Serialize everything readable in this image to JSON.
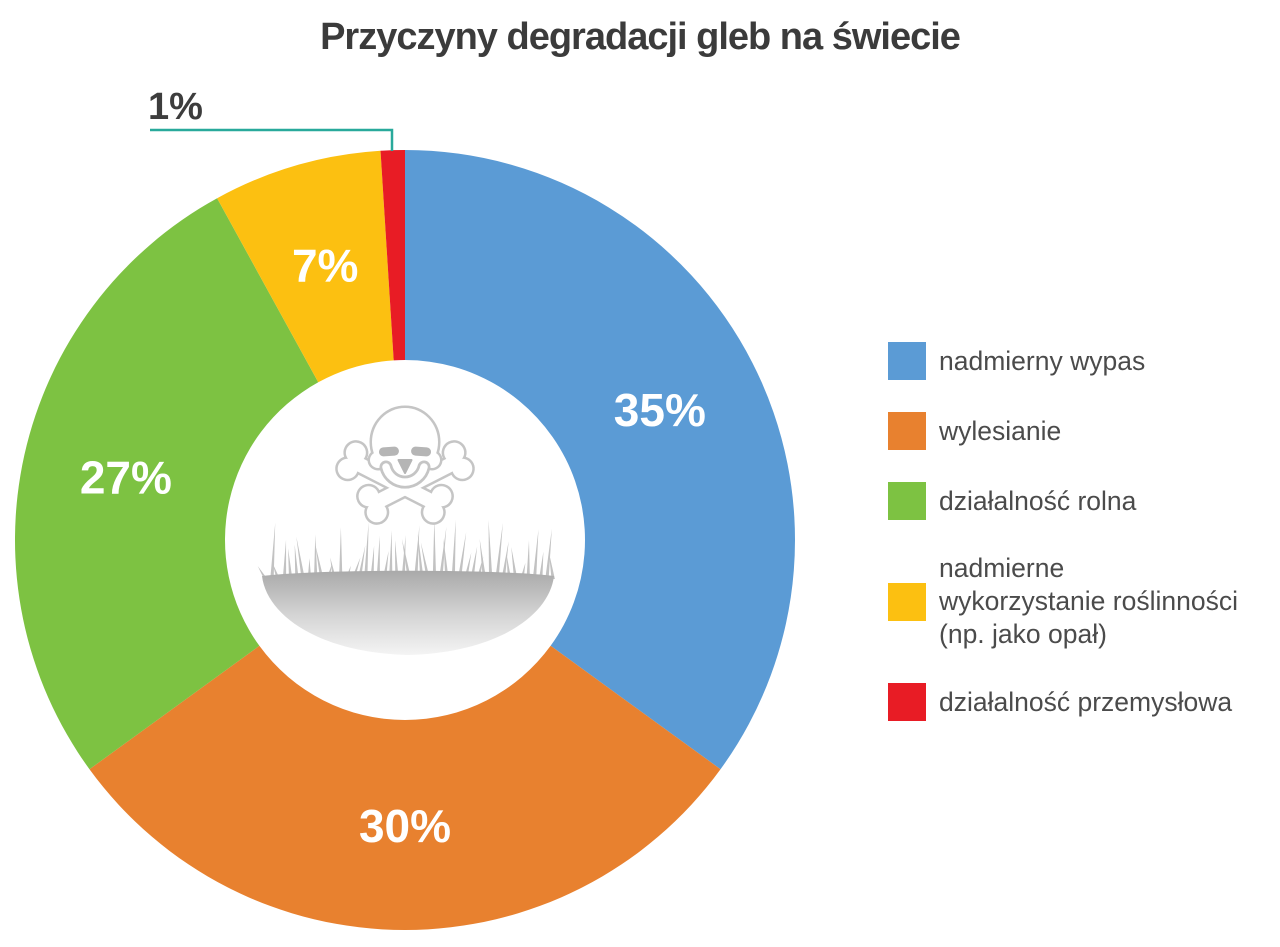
{
  "title": "Przyczyny degradacji gleb na świecie",
  "chart_data": {
    "type": "pie",
    "subtype": "donut",
    "title": "Przyczyny degradacji gleb na świecie",
    "start_angle_deg": 0,
    "direction": "clockwise",
    "donut_hole_ratio": 0.46,
    "legend_position": "right",
    "center_icon": "skull-crossbones-over-grass-soil",
    "callout_color": "#29a99b",
    "series": [
      {
        "label": "nadmierny wypas",
        "value": 35,
        "pct_label": "35%",
        "color": "#5b9bd5",
        "label_placement": "inside"
      },
      {
        "label": "wylesianie",
        "value": 30,
        "pct_label": "30%",
        "color": "#e8812f",
        "label_placement": "inside"
      },
      {
        "label": "działalność rolna",
        "value": 27,
        "pct_label": "27%",
        "color": "#7dc242",
        "label_placement": "inside"
      },
      {
        "label": "nadmierne wykorzystanie roślinności (np. jako opał)",
        "value": 7,
        "pct_label": "7%",
        "color": "#fcc011",
        "label_placement": "inside"
      },
      {
        "label": "działalność przemysłowa",
        "value": 1,
        "pct_label": "1%",
        "color": "#e81c25",
        "label_placement": "outside-callout"
      }
    ]
  },
  "legend": {
    "items": [
      {
        "label": "nadmierny wypas",
        "color": "#5b9bd5"
      },
      {
        "label": "wylesianie",
        "color": "#e8812f"
      },
      {
        "label": "działalność rolna",
        "color": "#7dc242"
      },
      {
        "label": "nadmierne\nwykorzystanie roślinności\n(np. jako opał)",
        "color": "#fcc011"
      },
      {
        "label": "działalność przemysłowa",
        "color": "#e81c25"
      }
    ]
  }
}
